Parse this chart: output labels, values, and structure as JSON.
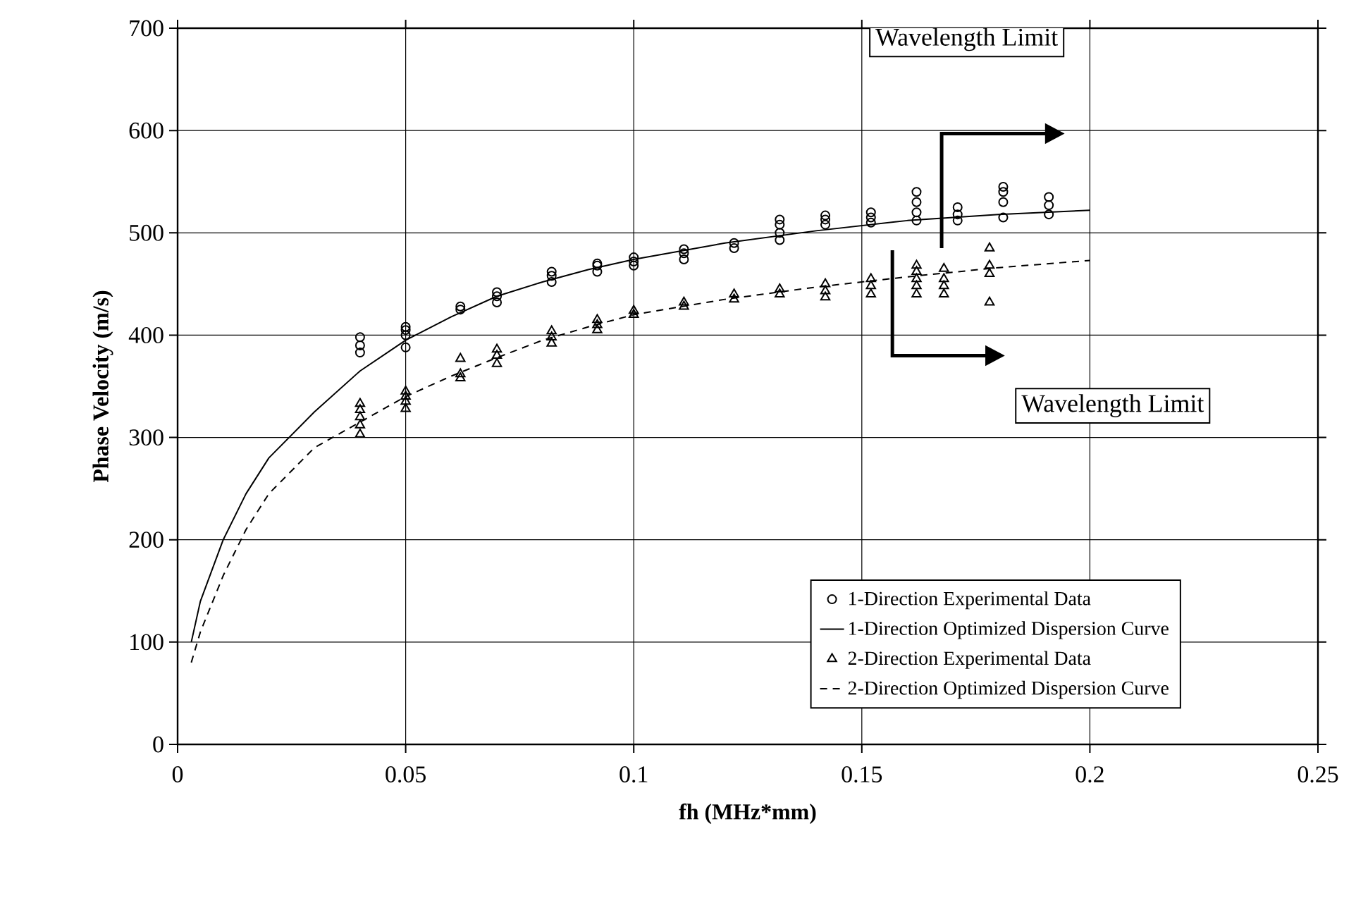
{
  "chart_data": {
    "type": "scatter",
    "xlabel": "fh (MHz*mm)",
    "ylabel": "Phase Velocity (m/s)",
    "xlim": [
      0,
      0.25
    ],
    "ylim": [
      0,
      700
    ],
    "xticks": [
      0,
      0.05,
      0.1,
      0.15,
      0.2,
      0.25
    ],
    "yticks": [
      0,
      100,
      200,
      300,
      400,
      500,
      600,
      700
    ],
    "grid": true,
    "legend": "bottom right",
    "series": [
      {
        "name": "1-Direction Experimental Data",
        "marker": "circle",
        "color": "#000000",
        "x": [
          0.04,
          0.04,
          0.04,
          0.05,
          0.05,
          0.05,
          0.05,
          0.062,
          0.062,
          0.07,
          0.07,
          0.07,
          0.082,
          0.082,
          0.082,
          0.092,
          0.092,
          0.092,
          0.1,
          0.1,
          0.1,
          0.111,
          0.111,
          0.111,
          0.122,
          0.122,
          0.132,
          0.132,
          0.132,
          0.132,
          0.142,
          0.142,
          0.142,
          0.152,
          0.152,
          0.152,
          0.162,
          0.162,
          0.162,
          0.162,
          0.171,
          0.171,
          0.171,
          0.181,
          0.181,
          0.181,
          0.181,
          0.191,
          0.191,
          0.191
        ],
        "values": [
          383,
          390,
          398,
          388,
          400,
          405,
          408,
          425,
          428,
          432,
          438,
          442,
          452,
          458,
          462,
          462,
          468,
          470,
          468,
          472,
          476,
          474,
          480,
          484,
          485,
          490,
          493,
          500,
          508,
          513,
          508,
          513,
          517,
          510,
          515,
          520,
          512,
          520,
          530,
          540,
          512,
          518,
          525,
          515,
          530,
          540,
          545,
          518,
          527,
          535
        ]
      },
      {
        "name": "1-Direction Optimized Dispersion Curve",
        "type": "line",
        "marker": "none",
        "line_style": "solid",
        "color": "#000000",
        "x": [
          0.003,
          0.005,
          0.01,
          0.015,
          0.02,
          0.03,
          0.04,
          0.05,
          0.06,
          0.07,
          0.08,
          0.09,
          0.1,
          0.12,
          0.14,
          0.16,
          0.18,
          0.2
        ],
        "values": [
          100,
          140,
          200,
          245,
          280,
          325,
          365,
          395,
          418,
          438,
          452,
          464,
          474,
          490,
          502,
          512,
          518,
          522
        ]
      },
      {
        "name": "2-Direction Experimental Data",
        "marker": "triangle",
        "color": "#000000",
        "x": [
          0.04,
          0.04,
          0.04,
          0.04,
          0.04,
          0.05,
          0.05,
          0.05,
          0.05,
          0.062,
          0.062,
          0.062,
          0.07,
          0.07,
          0.07,
          0.082,
          0.082,
          0.082,
          0.092,
          0.092,
          0.092,
          0.1,
          0.1,
          0.111,
          0.111,
          0.122,
          0.122,
          0.132,
          0.132,
          0.142,
          0.142,
          0.142,
          0.152,
          0.152,
          0.152,
          0.162,
          0.162,
          0.162,
          0.162,
          0.162,
          0.168,
          0.168,
          0.168,
          0.168,
          0.178,
          0.178,
          0.178,
          0.178
        ],
        "values": [
          303,
          312,
          320,
          327,
          333,
          328,
          335,
          340,
          345,
          358,
          362,
          377,
          372,
          380,
          386,
          392,
          398,
          404,
          405,
          410,
          415,
          420,
          424,
          428,
          432,
          435,
          440,
          440,
          445,
          437,
          443,
          450,
          440,
          448,
          455,
          440,
          448,
          455,
          462,
          468,
          440,
          448,
          455,
          465,
          432,
          460,
          468,
          485
        ]
      },
      {
        "name": "2-Direction Optimized Dispersion Curve",
        "type": "line",
        "marker": "none",
        "line_style": "dashed",
        "color": "#000000",
        "x": [
          0.003,
          0.005,
          0.01,
          0.015,
          0.02,
          0.03,
          0.04,
          0.05,
          0.06,
          0.07,
          0.08,
          0.09,
          0.1,
          0.12,
          0.14,
          0.16,
          0.18,
          0.2
        ],
        "values": [
          80,
          110,
          165,
          210,
          245,
          290,
          315,
          340,
          360,
          378,
          395,
          408,
          420,
          435,
          447,
          457,
          466,
          473
        ]
      }
    ],
    "annotations": [
      "Wavelength Limit",
      "Wavelength Limit"
    ]
  }
}
